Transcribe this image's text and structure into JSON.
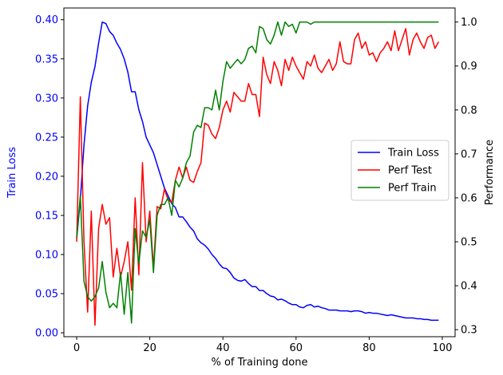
{
  "chart_data": {
    "type": "line",
    "xlabel": "% of Training done",
    "ylabel_left": "Train Loss",
    "ylabel_right": "Performance",
    "xlim": [
      -3.5,
      103.5
    ],
    "ylim_left": [
      -0.005,
      0.415
    ],
    "ylim_right": [
      0.284,
      1.032
    ],
    "x_ticks": [
      0,
      20,
      40,
      60,
      80,
      100
    ],
    "x_tick_labels": [
      "0",
      "20",
      "40",
      "60",
      "80",
      "100"
    ],
    "y_left_ticks": [
      0.0,
      0.05,
      0.1,
      0.15,
      0.2,
      0.25,
      0.3,
      0.35,
      0.4
    ],
    "y_left_tick_labels": [
      "0.00",
      "0.05",
      "0.10",
      "0.15",
      "0.20",
      "0.25",
      "0.30",
      "0.35",
      "0.40"
    ],
    "y_right_ticks": [
      0.3,
      0.4,
      0.5,
      0.6,
      0.7,
      0.8,
      0.9,
      1.0
    ],
    "y_right_tick_labels": [
      "0.3",
      "0.4",
      "0.5",
      "0.6",
      "0.7",
      "0.8",
      "0.9",
      "1.0"
    ],
    "legend_position": "center-right",
    "grid": false,
    "colors": {
      "left_axis": "#0000ff",
      "train_loss": "#0000ff",
      "perf_test": "#ff0000",
      "perf_train": "#008000"
    },
    "series": [
      {
        "name": "Train Loss",
        "axis": "left",
        "x": [
          0,
          1,
          2,
          3,
          4,
          5,
          6,
          7,
          8,
          9,
          10,
          11,
          12,
          13,
          14,
          15,
          16,
          17,
          18,
          19,
          20,
          21,
          22,
          23,
          24,
          25,
          26,
          27,
          28,
          29,
          30,
          31,
          32,
          33,
          34,
          35,
          36,
          37,
          38,
          39,
          40,
          41,
          42,
          43,
          44,
          45,
          46,
          47,
          48,
          49,
          50,
          51,
          52,
          53,
          54,
          55,
          56,
          57,
          58,
          59,
          60,
          61,
          62,
          63,
          64,
          65,
          66,
          67,
          68,
          69,
          70,
          71,
          72,
          73,
          74,
          75,
          76,
          77,
          78,
          79,
          80,
          81,
          82,
          83,
          84,
          85,
          86,
          87,
          88,
          89,
          90,
          91,
          92,
          93,
          94,
          95,
          96,
          97,
          98,
          99
        ],
        "values": [
          0.12,
          0.17,
          0.24,
          0.29,
          0.32,
          0.34,
          0.37,
          0.397,
          0.395,
          0.385,
          0.38,
          0.37,
          0.362,
          0.35,
          0.333,
          0.308,
          0.308,
          0.285,
          0.27,
          0.25,
          0.24,
          0.23,
          0.215,
          0.2,
          0.185,
          0.175,
          0.165,
          0.16,
          0.148,
          0.148,
          0.142,
          0.135,
          0.13,
          0.12,
          0.115,
          0.112,
          0.107,
          0.1,
          0.095,
          0.088,
          0.083,
          0.082,
          0.077,
          0.07,
          0.067,
          0.066,
          0.068,
          0.063,
          0.059,
          0.059,
          0.054,
          0.054,
          0.05,
          0.047,
          0.046,
          0.042,
          0.043,
          0.041,
          0.038,
          0.036,
          0.036,
          0.033,
          0.032,
          0.035,
          0.036,
          0.033,
          0.034,
          0.032,
          0.031,
          0.029,
          0.029,
          0.029,
          0.028,
          0.028,
          0.028,
          0.027,
          0.028,
          0.028,
          0.027,
          0.025,
          0.026,
          0.025,
          0.025,
          0.024,
          0.023,
          0.022,
          0.023,
          0.022,
          0.021,
          0.02,
          0.019,
          0.019,
          0.019,
          0.018,
          0.018,
          0.017,
          0.017,
          0.016,
          0.016,
          0.016
        ]
      },
      {
        "name": "Perf Test",
        "axis": "right",
        "x": [
          0,
          1,
          2,
          3,
          4,
          5,
          6,
          7,
          8,
          9,
          10,
          11,
          12,
          13,
          14,
          15,
          16,
          17,
          18,
          19,
          20,
          21,
          22,
          23,
          24,
          25,
          26,
          27,
          28,
          29,
          30,
          31,
          32,
          33,
          34,
          35,
          36,
          37,
          38,
          39,
          40,
          41,
          42,
          43,
          44,
          45,
          46,
          47,
          48,
          49,
          50,
          51,
          52,
          53,
          54,
          55,
          56,
          57,
          58,
          59,
          60,
          61,
          62,
          63,
          64,
          65,
          66,
          67,
          68,
          69,
          70,
          71,
          72,
          73,
          74,
          75,
          76,
          77,
          78,
          79,
          80,
          81,
          82,
          83,
          84,
          85,
          86,
          87,
          88,
          89,
          90,
          91,
          92,
          93,
          94,
          95,
          96,
          97,
          98,
          99
        ],
        "values": [
          0.5,
          0.83,
          0.5,
          0.34,
          0.57,
          0.31,
          0.53,
          0.585,
          0.54,
          0.555,
          0.42,
          0.485,
          0.42,
          0.455,
          0.5,
          0.39,
          0.6,
          0.425,
          0.68,
          0.5,
          0.57,
          0.44,
          0.58,
          0.575,
          0.62,
          0.595,
          0.59,
          0.64,
          0.67,
          0.645,
          0.67,
          0.64,
          0.635,
          0.66,
          0.68,
          0.77,
          0.765,
          0.745,
          0.735,
          0.76,
          0.8,
          0.82,
          0.795,
          0.84,
          0.83,
          0.82,
          0.82,
          0.86,
          0.835,
          0.835,
          0.785,
          0.92,
          0.88,
          0.86,
          0.91,
          0.89,
          0.855,
          0.915,
          0.89,
          0.92,
          0.9,
          0.885,
          0.87,
          0.91,
          0.9,
          0.925,
          0.895,
          0.885,
          0.9,
          0.915,
          0.89,
          0.905,
          0.955,
          0.91,
          0.905,
          0.905,
          0.96,
          0.975,
          0.94,
          0.955,
          0.925,
          0.93,
          0.91,
          0.93,
          0.94,
          0.955,
          0.935,
          0.98,
          0.935,
          0.96,
          0.985,
          0.925,
          0.96,
          0.975,
          0.955,
          0.94,
          0.965,
          0.97,
          0.94,
          0.955
        ]
      },
      {
        "name": "Perf Train",
        "axis": "right",
        "x": [
          0,
          1,
          2,
          3,
          4,
          5,
          6,
          7,
          8,
          9,
          10,
          11,
          12,
          13,
          14,
          15,
          16,
          17,
          18,
          19,
          20,
          21,
          22,
          23,
          24,
          25,
          26,
          27,
          28,
          29,
          30,
          31,
          32,
          33,
          34,
          35,
          36,
          37,
          38,
          39,
          40,
          41,
          42,
          43,
          44,
          45,
          46,
          47,
          48,
          49,
          50,
          51,
          52,
          53,
          54,
          55,
          56,
          57,
          58,
          59,
          60,
          61,
          62,
          63,
          64,
          65,
          66,
          67,
          68,
          69,
          70,
          71,
          72,
          73,
          74,
          75,
          76,
          77,
          78,
          79,
          80,
          81,
          82,
          83,
          84,
          85,
          86,
          87,
          88,
          89,
          90,
          91,
          92,
          93,
          94,
          95,
          96,
          97,
          98,
          99
        ],
        "values": [
          0.51,
          0.605,
          0.41,
          0.375,
          0.365,
          0.375,
          0.395,
          0.455,
          0.385,
          0.35,
          0.36,
          0.35,
          0.43,
          0.335,
          0.43,
          0.315,
          0.53,
          0.45,
          0.525,
          0.51,
          0.55,
          0.43,
          0.56,
          0.585,
          0.585,
          0.6,
          0.56,
          0.64,
          0.625,
          0.645,
          0.68,
          0.695,
          0.75,
          0.765,
          0.76,
          0.805,
          0.805,
          0.8,
          0.845,
          0.8,
          0.865,
          0.91,
          0.895,
          0.905,
          0.915,
          0.905,
          0.915,
          0.94,
          0.945,
          0.93,
          0.99,
          0.985,
          0.96,
          0.95,
          0.97,
          1.0,
          0.97,
          1.0,
          0.99,
          0.995,
          0.975,
          1.0,
          1.0,
          1.0,
          0.995,
          1.0,
          1.0,
          1.0,
          1.0,
          1.0,
          1.0,
          1.0,
          1.0,
          1.0,
          1.0,
          1.0,
          1.0,
          1.0,
          1.0,
          1.0,
          1.0,
          1.0,
          1.0,
          1.0,
          1.0,
          1.0,
          1.0,
          1.0,
          1.0,
          1.0,
          1.0,
          1.0,
          1.0,
          1.0,
          1.0,
          1.0,
          1.0,
          1.0,
          1.0,
          1.0
        ]
      }
    ]
  }
}
